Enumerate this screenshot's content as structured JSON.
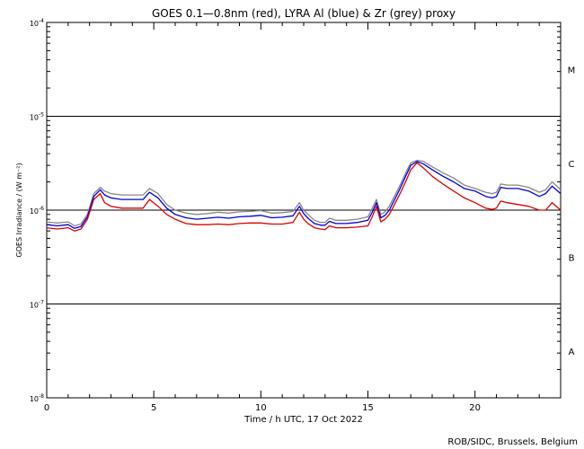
{
  "chart_data": {
    "type": "line",
    "title": "GOES 0.1—0.8nm (red), LYRA Al (blue) & Zr (grey) proxy",
    "xlabel": "Time / h UTC, 17 Oct 2022",
    "ylabel": "GOES Irradiance / (W m⁻²)",
    "footer": "ROB/SIDC, Brussels, Belgium",
    "xlim": [
      0,
      24
    ],
    "ylim": [
      1e-08,
      0.0001
    ],
    "yscale": "log",
    "x_ticks": [
      0,
      5,
      10,
      15,
      20
    ],
    "x_tick_labels": [
      "0",
      "5",
      "10",
      "15",
      "20"
    ],
    "y_ticks": [
      {
        "base": "10",
        "exp": "-8"
      },
      {
        "base": "10",
        "exp": "-7"
      },
      {
        "base": "10",
        "exp": "-6"
      },
      {
        "base": "10",
        "exp": "-5"
      },
      {
        "base": "10",
        "exp": "-4"
      }
    ],
    "flare_classes": [
      {
        "label": "A",
        "log_center": -7.5
      },
      {
        "label": "B",
        "log_center": -6.5
      },
      {
        "label": "C",
        "log_center": -5.5
      },
      {
        "label": "M",
        "log_center": -4.5
      }
    ],
    "class_lines": [
      1e-07,
      1e-06,
      1e-05
    ],
    "grid": false,
    "series": [
      {
        "color": "#dd0000",
        "x": [
          0,
          0.5,
          1,
          1.3,
          1.6,
          1.9,
          2.2,
          2.5,
          2.7,
          3,
          3.5,
          4,
          4.5,
          4.8,
          5.2,
          5.6,
          6,
          6.5,
          7,
          7.5,
          8,
          8.5,
          9,
          9.5,
          10,
          10.5,
          11,
          11.5,
          11.8,
          12,
          12.2,
          12.5,
          12.8,
          13,
          13.2,
          13.5,
          14,
          14.5,
          15,
          15.2,
          15.4,
          15.6,
          15.8,
          16,
          16.5,
          16.8,
          17,
          17.3,
          17.6,
          18,
          18.5,
          19,
          19.5,
          20,
          20.5,
          20.8,
          21,
          21.2,
          21.5,
          22,
          22.5,
          23,
          23.3,
          23.6,
          24
        ],
        "y": [
          6.5e-07,
          6.3e-07,
          6.5e-07,
          6e-07,
          6.3e-07,
          8e-07,
          1.3e-06,
          1.5e-06,
          1.2e-06,
          1.1e-06,
          1.05e-06,
          1.05e-06,
          1.05e-06,
          1.3e-06,
          1.1e-06,
          9e-07,
          8e-07,
          7.2e-07,
          7e-07,
          7e-07,
          7.1e-07,
          7e-07,
          7.2e-07,
          7.3e-07,
          7.3e-07,
          7.1e-07,
          7.1e-07,
          7.4e-07,
          9.5e-07,
          8e-07,
          7.2e-07,
          6.5e-07,
          6.3e-07,
          6.2e-07,
          6.8e-07,
          6.5e-07,
          6.5e-07,
          6.6e-07,
          6.8e-07,
          8.5e-07,
          1.1e-06,
          7.5e-07,
          8e-07,
          9e-07,
          1.5e-06,
          2.1e-06,
          2.7e-06,
          3.2e-06,
          2.8e-06,
          2.3e-06,
          1.9e-06,
          1.6e-06,
          1.35e-06,
          1.2e-06,
          1.05e-06,
          1.02e-06,
          1.05e-06,
          1.25e-06,
          1.2e-06,
          1.15e-06,
          1.1e-06,
          1e-06,
          1e-06,
          1.2e-06,
          1e-06
        ]
      },
      {
        "color": "#0000dd",
        "x": [
          0,
          0.5,
          1,
          1.3,
          1.6,
          1.9,
          2.2,
          2.5,
          2.7,
          3,
          3.5,
          4,
          4.5,
          4.8,
          5.2,
          5.6,
          6,
          6.5,
          7,
          7.5,
          8,
          8.5,
          9,
          9.5,
          10,
          10.5,
          11,
          11.5,
          11.8,
          12,
          12.2,
          12.5,
          12.8,
          13,
          13.2,
          13.5,
          14,
          14.5,
          15,
          15.2,
          15.4,
          15.6,
          15.8,
          16,
          16.5,
          16.8,
          17,
          17.3,
          17.6,
          18,
          18.5,
          19,
          19.5,
          20,
          20.5,
          20.8,
          21,
          21.2,
          21.5,
          22,
          22.5,
          23,
          23.3,
          23.6,
          24
        ],
        "y": [
          7e-07,
          6.8e-07,
          7e-07,
          6.4e-07,
          6.7e-07,
          8.5e-07,
          1.4e-06,
          1.65e-06,
          1.45e-06,
          1.35e-06,
          1.3e-06,
          1.3e-06,
          1.3e-06,
          1.55e-06,
          1.35e-06,
          1.05e-06,
          9e-07,
          8.3e-07,
          8e-07,
          8.2e-07,
          8.4e-07,
          8.2e-07,
          8.5e-07,
          8.6e-07,
          8.8e-07,
          8.3e-07,
          8.4e-07,
          8.7e-07,
          1.1e-06,
          9.2e-07,
          8.2e-07,
          7.2e-07,
          6.9e-07,
          6.9e-07,
          7.6e-07,
          7.2e-07,
          7.2e-07,
          7.4e-07,
          7.8e-07,
          9.5e-07,
          1.2e-06,
          8.3e-07,
          8.8e-07,
          1e-06,
          1.7e-06,
          2.4e-06,
          3e-06,
          3.3e-06,
          3.1e-06,
          2.7e-06,
          2.3e-06,
          2e-06,
          1.7e-06,
          1.6e-06,
          1.4e-06,
          1.35e-06,
          1.4e-06,
          1.75e-06,
          1.7e-06,
          1.7e-06,
          1.6e-06,
          1.4e-06,
          1.5e-06,
          1.8e-06,
          1.5e-06
        ]
      },
      {
        "color": "#888888",
        "x": [
          0,
          0.5,
          1,
          1.3,
          1.6,
          1.9,
          2.2,
          2.5,
          2.7,
          3,
          3.5,
          4,
          4.5,
          4.8,
          5.2,
          5.6,
          6,
          6.5,
          7,
          7.5,
          8,
          8.5,
          9,
          9.5,
          10,
          10.5,
          11,
          11.5,
          11.8,
          12,
          12.2,
          12.5,
          12.8,
          13,
          13.2,
          13.5,
          14,
          14.5,
          15,
          15.2,
          15.4,
          15.6,
          15.8,
          16,
          16.5,
          16.8,
          17,
          17.3,
          17.6,
          18,
          18.5,
          19,
          19.5,
          20,
          20.5,
          20.8,
          21,
          21.2,
          21.5,
          22,
          22.5,
          23,
          23.3,
          23.6,
          24
        ],
        "y": [
          7.5e-07,
          7.3e-07,
          7.5e-07,
          6.8e-07,
          7.1e-07,
          9e-07,
          1.5e-06,
          1.75e-06,
          1.6e-06,
          1.5e-06,
          1.45e-06,
          1.45e-06,
          1.45e-06,
          1.7e-06,
          1.5e-06,
          1.15e-06,
          1e-06,
          9.3e-07,
          9e-07,
          9.2e-07,
          9.5e-07,
          9.3e-07,
          9.6e-07,
          9.7e-07,
          9.9e-07,
          9.3e-07,
          9.4e-07,
          9.7e-07,
          1.2e-06,
          1e-06,
          9e-07,
          7.8e-07,
          7.4e-07,
          7.4e-07,
          8.2e-07,
          7.8e-07,
          7.8e-07,
          8e-07,
          8.5e-07,
          1.05e-06,
          1.3e-06,
          9e-07,
          9.6e-07,
          1.1e-06,
          1.85e-06,
          2.6e-06,
          3.2e-06,
          3.4e-06,
          3.3e-06,
          2.9e-06,
          2.5e-06,
          2.2e-06,
          1.85e-06,
          1.7e-06,
          1.55e-06,
          1.5e-06,
          1.55e-06,
          1.9e-06,
          1.85e-06,
          1.85e-06,
          1.75e-06,
          1.55e-06,
          1.65e-06,
          2e-06,
          1.65e-06
        ]
      }
    ]
  }
}
